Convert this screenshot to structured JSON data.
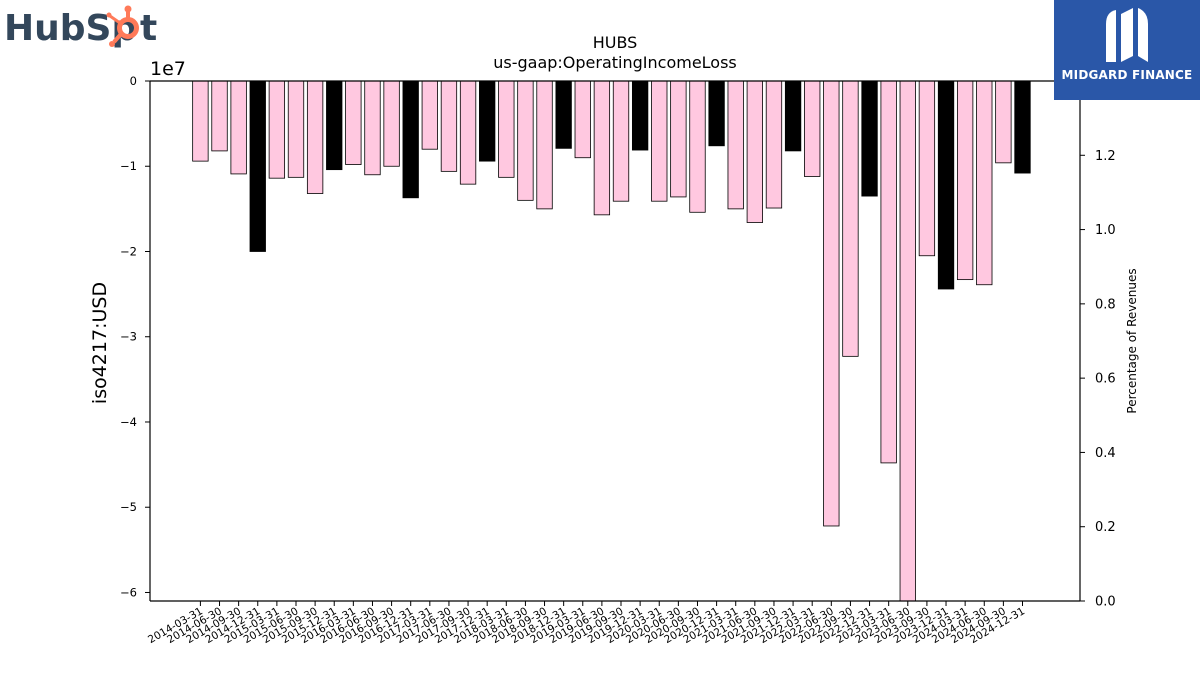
{
  "logos": {
    "left_text_a": "HubSp",
    "left_text_b": "t",
    "right_text": "MIDGARD FINANCE"
  },
  "colors": {
    "bar_normal": "#ffc8e0",
    "bar_highlight": "#000000",
    "bar_edge": "#000000",
    "hubspot_orange": "#ff7a59",
    "hubspot_dark": "#33475b",
    "midgard_blue": "#2a57a8"
  },
  "chart_data": {
    "type": "bar",
    "title": "HUBS",
    "subtitle": "us-gaap:OperatingIncomeLoss",
    "ylabel": "iso4217:USD",
    "ylabel_right": "Percentage of Revenues",
    "y_offset_label": "1e7",
    "ylim": [
      -61000000,
      0
    ],
    "yticks": [
      0,
      -10000000,
      -20000000,
      -30000000,
      -40000000,
      -50000000,
      -60000000
    ],
    "ytick_labels": [
      "0",
      "−1",
      "−2",
      "−3",
      "−4",
      "−5",
      "−6"
    ],
    "y2lim": [
      0.0,
      1.4
    ],
    "y2ticks": [
      0.0,
      0.2,
      0.4,
      0.6,
      0.8,
      1.0,
      1.2
    ],
    "y2tick_labels": [
      "0.0",
      "0.2",
      "0.4",
      "0.6",
      "0.8",
      "1.0",
      "1.2"
    ],
    "categories": [
      "2014-03-31",
      "2014-06-30",
      "2014-09-30",
      "2014-12-31",
      "2015-03-31",
      "2015-06-30",
      "2015-09-30",
      "2015-12-31",
      "2016-03-31",
      "2016-06-30",
      "2016-09-30",
      "2016-12-31",
      "2017-03-31",
      "2017-06-30",
      "2017-09-30",
      "2017-12-31",
      "2018-03-31",
      "2018-06-30",
      "2018-09-30",
      "2018-12-31",
      "2019-03-31",
      "2019-06-30",
      "2019-09-30",
      "2019-12-31",
      "2020-03-31",
      "2020-06-30",
      "2020-09-30",
      "2020-12-31",
      "2021-03-31",
      "2021-06-30",
      "2021-09-30",
      "2021-12-31",
      "2022-03-31",
      "2022-06-30",
      "2022-09-30",
      "2022-12-31",
      "2023-03-31",
      "2023-06-30",
      "2023-09-30",
      "2023-12-31",
      "2024-03-31",
      "2024-06-30",
      "2024-09-30",
      "2024-12-31"
    ],
    "values": [
      -9400000,
      -8200000,
      -10900000,
      -20000000,
      -11400000,
      -11300000,
      -13200000,
      -10400000,
      -9800000,
      -11000000,
      -10000000,
      -13700000,
      -8000000,
      -10600000,
      -12100000,
      -9400000,
      -11300000,
      -14000000,
      -15000000,
      -7900000,
      -9000000,
      -15700000,
      -14100000,
      -8100000,
      -14100000,
      -13600000,
      -15400000,
      -7600000,
      -15000000,
      -16600000,
      -14900000,
      -8200000,
      -11200000,
      -52200000,
      -32300000,
      -13500000,
      -44800000,
      -61000000,
      -20500000,
      -24400000,
      -23300000,
      -23900000,
      -9600000,
      -10800000
    ],
    "highlight": [
      false,
      false,
      false,
      true,
      false,
      false,
      false,
      true,
      false,
      false,
      false,
      true,
      false,
      false,
      false,
      true,
      false,
      false,
      false,
      true,
      false,
      false,
      false,
      true,
      false,
      false,
      false,
      true,
      false,
      false,
      false,
      true,
      false,
      false,
      false,
      true,
      false,
      false,
      false,
      true,
      false,
      false,
      false,
      true
    ]
  }
}
